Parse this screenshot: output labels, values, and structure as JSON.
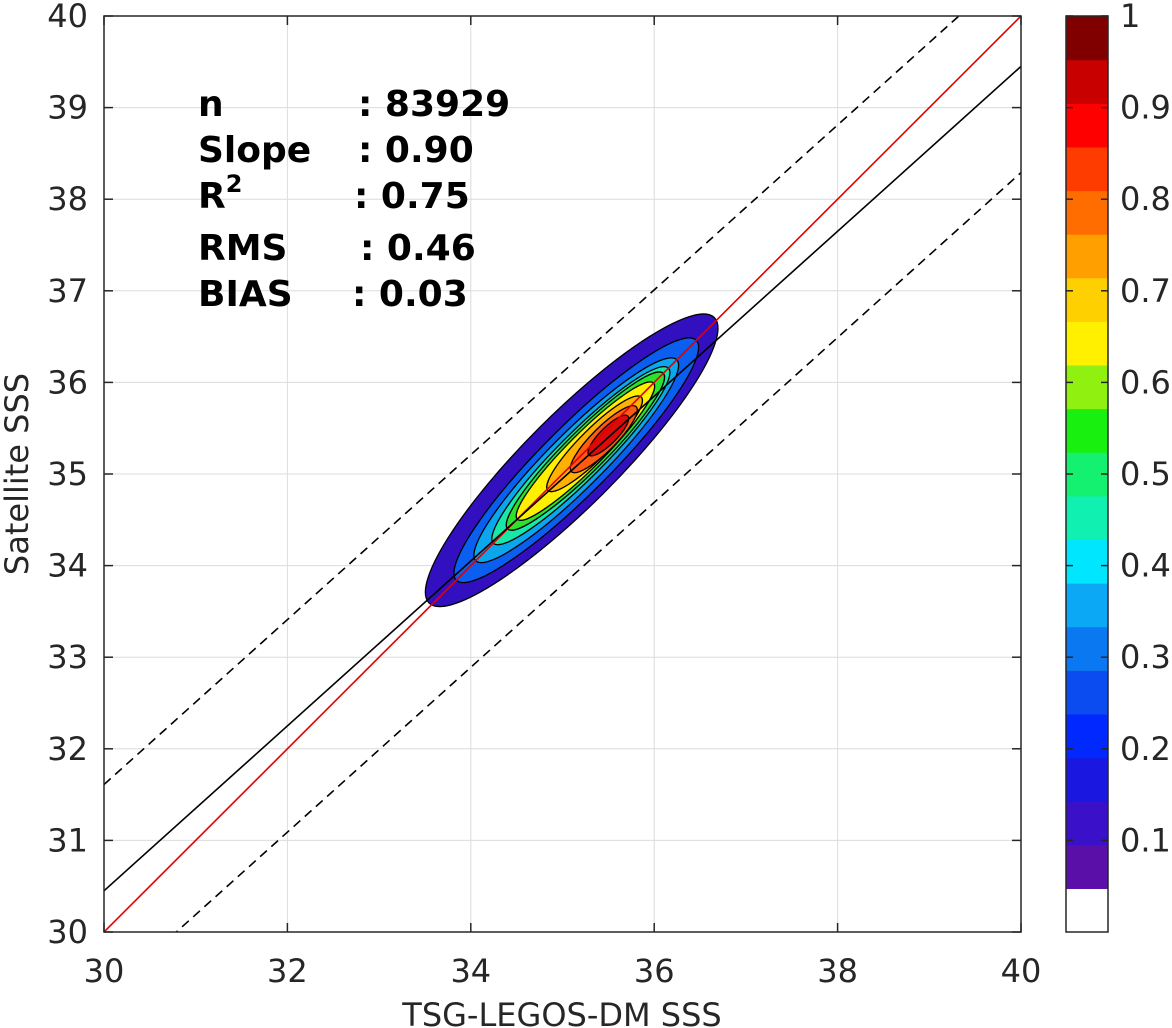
{
  "chart_data": {
    "type": "contour",
    "xlabel": "TSG-LEGOS-DM SSS",
    "ylabel": "Satellite SSS",
    "xlim": [
      30,
      40
    ],
    "ylim": [
      30,
      40
    ],
    "x_ticks": [
      "30",
      "32",
      "34",
      "36",
      "38",
      "40"
    ],
    "y_ticks": [
      "30",
      "31",
      "32",
      "33",
      "34",
      "35",
      "36",
      "37",
      "38",
      "39",
      "40"
    ],
    "grid": true,
    "stats": [
      {
        "label": "n",
        "value": ": 83929"
      },
      {
        "label": "Slope",
        "value": ": 0.90"
      },
      {
        "label": "R",
        "sup": "2",
        "value": ": 0.75"
      },
      {
        "label": "RMS",
        "value": ": 0.46"
      },
      {
        "label": "BIAS",
        "value": ": 0.03"
      }
    ],
    "lines": [
      {
        "kind": "identity",
        "color": "#e00000",
        "slope": 1,
        "intercept": 0
      },
      {
        "kind": "fit",
        "color": "#000000",
        "slope": 0.9,
        "intercept": 3.45
      },
      {
        "kind": "fit_plus",
        "color": "#000000",
        "dash": true,
        "slope": 0.9,
        "intercept": 4.61
      },
      {
        "kind": "fit_minus",
        "color": "#000000",
        "dash": true,
        "slope": 0.9,
        "intercept": 2.29
      }
    ],
    "density_peak": {
      "x": 35.5,
      "y": 35.4
    },
    "contour_levels": [
      {
        "level": 0.05,
        "color": "#3310bf",
        "rx": 2.2,
        "ry": 0.5,
        "cx": 35.1,
        "cy": 35.15
      },
      {
        "level": 0.2,
        "color": "#0a5ff0",
        "rx": 1.85,
        "ry": 0.37,
        "cx": 35.15,
        "cy": 35.15
      },
      {
        "level": 0.3,
        "color": "#0aa6ee",
        "rx": 1.55,
        "ry": 0.3,
        "cx": 35.15,
        "cy": 35.15
      },
      {
        "level": 0.4,
        "color": "#17e8a8",
        "rx": 1.35,
        "ry": 0.25,
        "cx": 35.2,
        "cy": 35.2
      },
      {
        "level": 0.5,
        "color": "#2de22d",
        "rx": 1.2,
        "ry": 0.22,
        "cx": 35.25,
        "cy": 35.25
      },
      {
        "level": 0.6,
        "color": "#fff000",
        "rx": 1.05,
        "ry": 0.19,
        "cx": 35.25,
        "cy": 35.25
      },
      {
        "level": 0.7,
        "color": "#ffb000",
        "rx": 0.72,
        "ry": 0.16,
        "cx": 35.35,
        "cy": 35.33
      },
      {
        "level": 0.8,
        "color": "#ff5a10",
        "rx": 0.5,
        "ry": 0.13,
        "cx": 35.45,
        "cy": 35.38
      },
      {
        "level": 0.9,
        "color": "#dd0a0a",
        "rx": 0.3,
        "ry": 0.09,
        "cx": 35.5,
        "cy": 35.42
      }
    ],
    "colorbar": {
      "ticks": [
        "0.1",
        "0.2",
        "0.3",
        "0.4",
        "0.5",
        "0.6",
        "0.7",
        "0.8",
        "0.9",
        "1"
      ],
      "min": 0,
      "max": 1,
      "bands": [
        "#ffffff",
        "#5a0fa8",
        "#3a10c8",
        "#1a18e0",
        "#0028ff",
        "#0a4cf0",
        "#0a78f0",
        "#0aa8f5",
        "#00e6ff",
        "#10f0b0",
        "#14f070",
        "#18f010",
        "#90f010",
        "#fff000",
        "#ffd000",
        "#ffa000",
        "#ff6c00",
        "#ff3c00",
        "#ff0000",
        "#c80000",
        "#800000"
      ]
    }
  }
}
